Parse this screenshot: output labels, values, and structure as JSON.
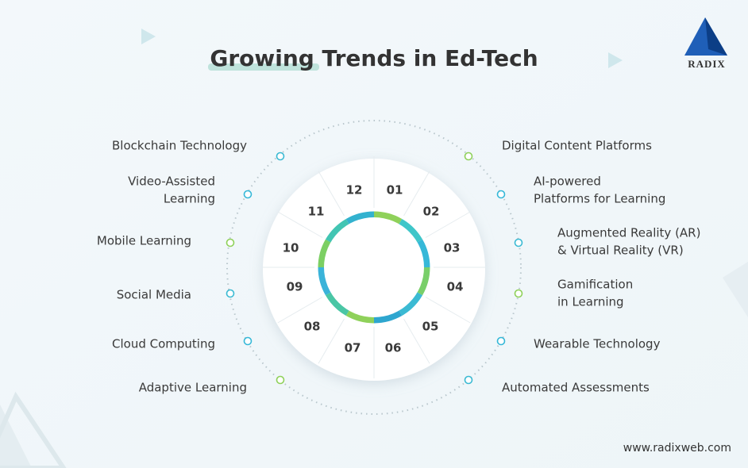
{
  "header": {
    "title": "Growing Trends in Ed-Tech",
    "logo": "RADIX"
  },
  "trends": [
    {
      "number": "01",
      "lines": [
        "Digital Content Platforms"
      ]
    },
    {
      "number": "02",
      "lines": [
        "AI-powered",
        "Platforms for Learning"
      ]
    },
    {
      "number": "03",
      "lines": [
        "Augmented Reality (AR)",
        "& Virtual Reality (VR)"
      ]
    },
    {
      "number": "04",
      "lines": [
        "Gamification",
        "in Learning"
      ]
    },
    {
      "number": "05",
      "lines": [
        "Wearable Technology"
      ]
    },
    {
      "number": "06",
      "lines": [
        "Automated Assessments"
      ]
    },
    {
      "number": "07",
      "lines": [
        "Adaptive Learning"
      ]
    },
    {
      "number": "08",
      "lines": [
        "Cloud Computing"
      ]
    },
    {
      "number": "09",
      "lines": [
        "Social Media"
      ]
    },
    {
      "number": "10",
      "lines": [
        "Mobile Learning"
      ]
    },
    {
      "number": "11",
      "lines": [
        "Video-Assisted",
        "Learning"
      ]
    },
    {
      "number": "12",
      "lines": [
        "Blockchain Technology"
      ]
    }
  ],
  "footer": {
    "website": "www.radixweb.com"
  }
}
